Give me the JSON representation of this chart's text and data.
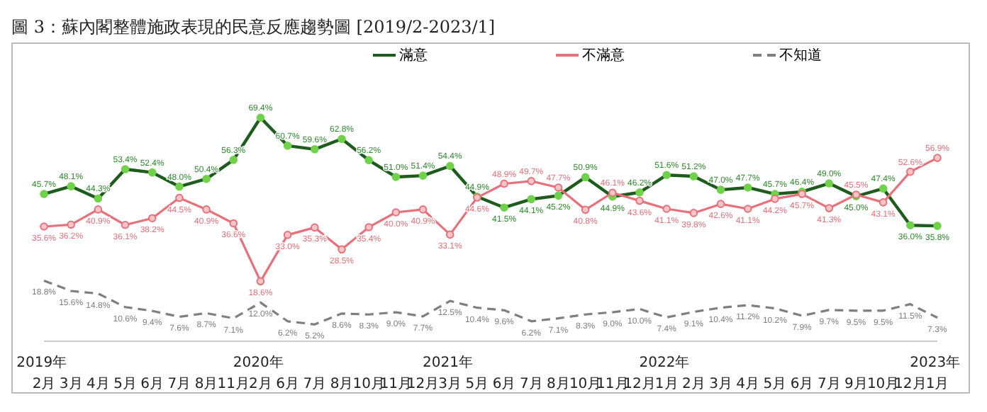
{
  "chart_data": {
    "type": "line",
    "title": "圖 3：蘇內閣整體施政表現的民意反應趨勢圖 [2019/2-2023/1]",
    "categories": [
      "2019年 2月",
      "3月",
      "4月",
      "5月",
      "6月",
      "7月",
      "8月",
      "11月",
      "2020年 2月",
      "6月",
      "7月",
      "8月",
      "10月",
      "11月",
      "12月",
      "2021年 3月",
      "5月",
      "6月",
      "7月",
      "8月",
      "10月",
      "11月",
      "12月",
      "2022年 1月",
      "2月",
      "3月",
      "4月",
      "5月",
      "6月",
      "7月",
      "9月",
      "10月",
      "12月",
      "2023年 1月"
    ],
    "series": [
      {
        "name": "滿意",
        "color": "#1d5c1d",
        "marker": "circle",
        "line_style": "solid",
        "values": [
          45.7,
          48.1,
          44.3,
          53.4,
          52.4,
          48.0,
          50.4,
          56.3,
          69.4,
          60.7,
          59.6,
          62.8,
          56.2,
          51.0,
          51.4,
          54.4,
          44.9,
          41.5,
          44.1,
          45.2,
          50.9,
          44.9,
          46.2,
          51.6,
          51.2,
          47.0,
          47.7,
          45.7,
          46.4,
          49.0,
          45.0,
          47.4,
          36.0,
          35.8
        ],
        "value_labels": [
          "45.7%",
          "48.1%",
          "44.3%",
          "53.4%",
          "52.4%",
          "48.0%",
          "50.4%",
          "56.3%",
          "69.4%",
          "60.7%",
          "59.6%",
          "62.8%",
          "56.2%",
          "51.0%",
          "51.4%",
          "54.4%",
          "44.9%",
          "41.5%",
          "44.1%",
          "45.2%",
          "50.9%",
          "44.9%",
          "46.2%",
          "51.6%",
          "51.2%",
          "47.0%",
          "47.7%",
          "45.7%",
          "46.4%",
          "49.0%",
          "45.0%",
          "47.4%",
          "36.0%",
          "35.8%"
        ]
      },
      {
        "name": "不滿意",
        "color": "#e8707a",
        "marker": "circle",
        "line_style": "solid",
        "values": [
          35.6,
          36.2,
          40.9,
          36.1,
          38.2,
          44.5,
          40.9,
          36.6,
          18.6,
          33.0,
          35.3,
          28.5,
          35.4,
          40.0,
          40.9,
          33.1,
          44.6,
          48.9,
          49.7,
          47.7,
          40.8,
          46.1,
          43.6,
          41.1,
          39.8,
          42.6,
          41.1,
          44.2,
          45.7,
          41.3,
          45.5,
          43.1,
          52.6,
          56.9
        ],
        "value_labels": [
          "35.6%",
          "36.2%",
          "40.9%",
          "36.1%",
          "38.2%",
          "44.5%",
          "40.9%",
          "36.6%",
          "18.6%",
          "33.0%",
          "35.3%",
          "28.5%",
          "35.4%",
          "40.0%",
          "40.9%",
          "33.1%",
          "44.6%",
          "48.9%",
          "49.7%",
          "47.7%",
          "40.8%",
          "46.1%",
          "43.6%",
          "41.1%",
          "39.8%",
          "42.6%",
          "41.1%",
          "44.2%",
          "45.7%",
          "41.3%",
          "45.5%",
          "43.1%",
          "52.6%",
          "56.9%"
        ]
      },
      {
        "name": "不知道",
        "color": "#7f7f7f",
        "marker": "none",
        "line_style": "dashed",
        "values": [
          18.8,
          15.6,
          14.8,
          10.6,
          9.4,
          7.6,
          8.7,
          7.1,
          12.0,
          6.2,
          5.2,
          8.6,
          8.3,
          9.0,
          7.7,
          12.5,
          10.4,
          9.6,
          6.2,
          7.1,
          8.3,
          9.0,
          10.0,
          7.4,
          9.1,
          10.4,
          11.2,
          10.2,
          7.9,
          9.7,
          9.5,
          9.5,
          11.5,
          7.3
        ],
        "value_labels": [
          "18.8%",
          "15.6%",
          "14.8%",
          "10.6%",
          "9.4%",
          "7.6%",
          "8.7%",
          "7.1%",
          "12.0%",
          "6.2%",
          "5.2%",
          "8.6%",
          "8.3%",
          "9.0%",
          "7.7%",
          "12.5%",
          "10.4%",
          "9.6%",
          "6.2%",
          "7.1%",
          "8.3%",
          "9.0%",
          "10.0%",
          "7.4%",
          "9.1%",
          "10.4%",
          "11.2%",
          "10.2%",
          "7.9%",
          "9.7%",
          "9.5%",
          "9.5%",
          "11.5%",
          "7.3%"
        ]
      }
    ],
    "grid": false,
    "legend": "top",
    "tick_labels": "x"
  }
}
